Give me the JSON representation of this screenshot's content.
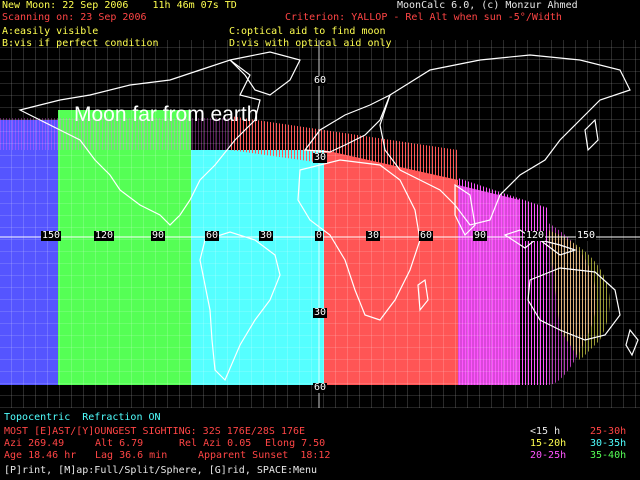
{
  "header": {
    "new_moon": "New Moon: 22 Sep 2006    11h 46m 07s TD",
    "app_title": "MoonCalc 6.0, (c) Monzur Ahmed",
    "scanning": "Scanning on: 23 Sep 2006",
    "criterion": "Criterion: YALLOP - Rel Alt when sun -5°/Width",
    "key_a": "A:easily visible",
    "key_c": "C:optical aid to find moon",
    "key_b": "B:vis if perfect condition",
    "key_d": "D:vis with optical aid only"
  },
  "map": {
    "callout": "Moon far from earth",
    "longitude_labels": [
      "150",
      "120",
      "90",
      "60",
      "30",
      "0",
      "30",
      "60",
      "90",
      "120",
      "150"
    ],
    "latitude_labels": [
      "60",
      "30",
      "30",
      "60"
    ],
    "zone_colors": {
      "A": "#55ff55",
      "B": "#55ffff",
      "C": "#ff5555",
      "D": "#ff55ff",
      "edge": "#5555ff"
    }
  },
  "info": {
    "mode": "Topocentric  Refraction ON",
    "most": "MOST [E]AST/[Y]OUNGEST SIGHTING: 32S 176E/28S 176E",
    "azi": "Azi 269.49",
    "alt": "Alt 6.79",
    "rel_azi": "Rel Azi 0.05",
    "elong": "Elong 7.50",
    "age": "Age 18.46 hr",
    "lag": "Lag 36.6 min",
    "sunset": "Apparent Sunset  18:12"
  },
  "legend": {
    "l1": "<15 h",
    "l2": "25-30h",
    "l3": "15-20h",
    "l4": "30-35h",
    "l5": "20-25h",
    "l6": "35-40h"
  },
  "footer": {
    "menu": "[P]rint, [M]ap:Full/Split/Sphere, [G]rid, SPACE:Menu"
  }
}
